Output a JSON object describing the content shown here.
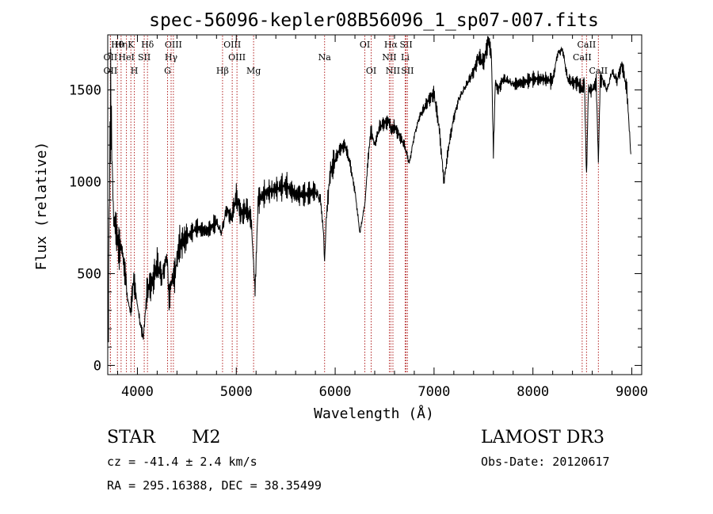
{
  "chart_data": {
    "type": "line",
    "title": "spec-56096-kepler08B56096_1_sp07-007.fits",
    "xlabel": "Wavelength (Å)",
    "ylabel": "Flux (relative)",
    "xlim": [
      3700,
      9100
    ],
    "ylim": [
      -50,
      1800
    ],
    "xticks": [
      4000,
      5000,
      6000,
      7000,
      8000,
      9000
    ],
    "yticks": [
      0,
      500,
      1000,
      1500
    ],
    "xtick_labels": [
      "4000",
      "5000",
      "6000",
      "7000",
      "8000",
      "9000"
    ],
    "ytick_labels": [
      "0",
      "500",
      "1000",
      "1500"
    ],
    "grid": false,
    "series": [
      {
        "name": "flux",
        "x": [
          3700,
          3730,
          3760,
          3790,
          3820,
          3850,
          3880,
          3900,
          3930,
          3960,
          3990,
          4020,
          4060,
          4100,
          4150,
          4200,
          4250,
          4300,
          4320,
          4340,
          4380,
          4420,
          4500,
          4600,
          4700,
          4800,
          4850,
          4900,
          4950,
          5000,
          5050,
          5100,
          5150,
          5170,
          5190,
          5220,
          5300,
          5400,
          5500,
          5600,
          5700,
          5800,
          5850,
          5880,
          5893,
          5910,
          5950,
          6000,
          6050,
          6100,
          6150,
          6200,
          6250,
          6300,
          6330,
          6360,
          6400,
          6450,
          6500,
          6550,
          6563,
          6600,
          6650,
          6700,
          6750,
          6800,
          6850,
          6900,
          6950,
          7000,
          7050,
          7100,
          7150,
          7200,
          7250,
          7300,
          7350,
          7400,
          7450,
          7500,
          7550,
          7580,
          7600,
          7620,
          7650,
          7700,
          7750,
          7800,
          7900,
          8000,
          8100,
          8200,
          8250,
          8300,
          8350,
          8400,
          8450,
          8500,
          8520,
          8542,
          8560,
          8600,
          8640,
          8662,
          8680,
          8700,
          8750,
          8800,
          8850,
          8900,
          8950,
          8990
        ],
        "y": [
          150,
          1450,
          800,
          700,
          650,
          600,
          500,
          350,
          300,
          450,
          380,
          250,
          150,
          420,
          450,
          550,
          480,
          600,
          350,
          450,
          500,
          650,
          700,
          750,
          730,
          780,
          720,
          850,
          800,
          920,
          820,
          850,
          800,
          600,
          400,
          900,
          940,
          960,
          980,
          930,
          930,
          950,
          900,
          750,
          560,
          800,
          1050,
          1120,
          1180,
          1200,
          1100,
          950,
          720,
          880,
          1100,
          1280,
          1200,
          1300,
          1320,
          1330,
          1280,
          1300,
          1250,
          1200,
          1100,
          1250,
          1350,
          1400,
          1450,
          1480,
          1300,
          1000,
          1200,
          1350,
          1450,
          1500,
          1550,
          1600,
          1680,
          1650,
          1770,
          1700,
          1150,
          1550,
          1500,
          1560,
          1550,
          1530,
          1540,
          1560,
          1560,
          1550,
          1700,
          1720,
          1560,
          1540,
          1540,
          1500,
          1550,
          1020,
          1500,
          1500,
          1540,
          1100,
          1550,
          1560,
          1500,
          1600,
          1550,
          1640,
          1500,
          1150
        ]
      }
    ],
    "line_markers": [
      {
        "name": "Hθ",
        "wavelength": 3798
      },
      {
        "name": "OII",
        "wavelength": 3727
      },
      {
        "name": "OII",
        "wavelength": 3727
      },
      {
        "name": "Hη",
        "wavelength": 3835
      },
      {
        "name": "HeI",
        "wavelength": 3889
      },
      {
        "name": "K",
        "wavelength": 3934
      },
      {
        "name": "H",
        "wavelength": 3969
      },
      {
        "name": "SII",
        "wavelength": 4069
      },
      {
        "name": "Hδ",
        "wavelength": 4102
      },
      {
        "name": "OIII",
        "wavelength": 4364
      },
      {
        "name": "Hγ",
        "wavelength": 4341
      },
      {
        "name": "G",
        "wavelength": 4305
      },
      {
        "name": "Hβ",
        "wavelength": 4861
      },
      {
        "name": "OIII",
        "wavelength": 4959
      },
      {
        "name": "OIII",
        "wavelength": 5007
      },
      {
        "name": "Mg",
        "wavelength": 5175
      },
      {
        "name": "Na",
        "wavelength": 5893
      },
      {
        "name": "OI",
        "wavelength": 6300
      },
      {
        "name": "OI",
        "wavelength": 6364
      },
      {
        "name": "Hα",
        "wavelength": 6563
      },
      {
        "name": "NII",
        "wavelength": 6548
      },
      {
        "name": "NII",
        "wavelength": 6584
      },
      {
        "name": "SII",
        "wavelength": 6717
      },
      {
        "name": "Li",
        "wavelength": 6708
      },
      {
        "name": "SII",
        "wavelength": 6731
      },
      {
        "name": "CaII",
        "wavelength": 8542
      },
      {
        "name": "CaII",
        "wavelength": 8498
      },
      {
        "name": "CaII",
        "wavelength": 8662
      }
    ]
  },
  "info": {
    "object_type": "STAR",
    "subclass": "M2",
    "survey": "LAMOST DR3",
    "cz": "cz = -41.4 ± 2.4 km/s",
    "obs_date": "Obs-Date: 20120617",
    "coords": "RA = 295.16388, DEC =  38.35499"
  },
  "colors": {
    "spectrum": "#000000",
    "marker": "#b22222",
    "axes": "#000000",
    "background": "#ffffff"
  }
}
